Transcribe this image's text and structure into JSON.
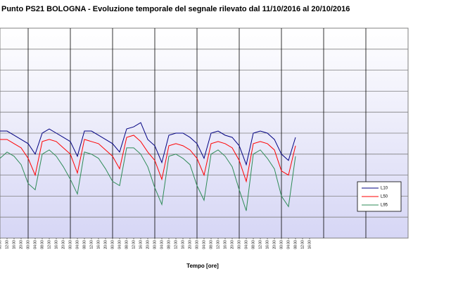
{
  "chart_data": {
    "type": "line",
    "title": "Punto PS21 BOLOGNA - Evoluzione temporale del segnale rilevato dal 11/10/2016 al 20/10/2016",
    "x_label": "Tempo [ore]",
    "x": [
      8,
      12,
      16,
      20,
      24,
      28,
      32,
      36,
      40,
      44,
      48,
      52,
      56,
      60,
      64,
      68,
      72,
      76,
      80,
      84,
      88,
      92,
      96,
      100,
      104,
      108,
      112,
      116,
      120,
      124,
      128,
      132,
      136,
      140,
      144,
      148,
      152,
      156,
      160,
      164,
      168,
      172,
      176
    ],
    "xlim": [
      8,
      240
    ],
    "xticks": [
      {
        "value": 8,
        "label": "08.00"
      },
      {
        "value": 12,
        "label": "12.00"
      },
      {
        "value": 16,
        "label": "16.00"
      },
      {
        "value": 20,
        "label": "20.00"
      },
      {
        "value": 24,
        "label": "00.00"
      },
      {
        "value": 28,
        "label": "04.00"
      },
      {
        "value": 32,
        "label": "08.00"
      },
      {
        "value": 36,
        "label": "12.00"
      },
      {
        "value": 40,
        "label": "16.00"
      },
      {
        "value": 44,
        "label": "20.00"
      },
      {
        "value": 48,
        "label": "00.00"
      },
      {
        "value": 52,
        "label": "04.00"
      },
      {
        "value": 56,
        "label": "08.00"
      },
      {
        "value": 60,
        "label": "12.00"
      },
      {
        "value": 64,
        "label": "16.00"
      },
      {
        "value": 68,
        "label": "20.00"
      },
      {
        "value": 72,
        "label": "00.00"
      },
      {
        "value": 76,
        "label": "04.00"
      },
      {
        "value": 80,
        "label": "08.00"
      },
      {
        "value": 84,
        "label": "12.00"
      },
      {
        "value": 88,
        "label": "16.00"
      },
      {
        "value": 92,
        "label": "20.00"
      },
      {
        "value": 96,
        "label": "00.00"
      },
      {
        "value": 100,
        "label": "04.00"
      },
      {
        "value": 104,
        "label": "08.00"
      },
      {
        "value": 108,
        "label": "12.00"
      },
      {
        "value": 112,
        "label": "16.00"
      },
      {
        "value": 116,
        "label": "20.00"
      },
      {
        "value": 120,
        "label": "00.00"
      },
      {
        "value": 124,
        "label": "04.00"
      },
      {
        "value": 128,
        "label": "08.00"
      },
      {
        "value": 132,
        "label": "12.00"
      },
      {
        "value": 136,
        "label": "16.00"
      },
      {
        "value": 140,
        "label": "20.00"
      },
      {
        "value": 144,
        "label": "00.00"
      },
      {
        "value": 148,
        "label": "04.00"
      },
      {
        "value": 152,
        "label": "08.00"
      },
      {
        "value": 156,
        "label": "12.00"
      },
      {
        "value": 160,
        "label": "16.00"
      },
      {
        "value": 164,
        "label": "20.00"
      },
      {
        "value": 168,
        "label": "00.00"
      },
      {
        "value": 172,
        "label": "04.00"
      },
      {
        "value": 176,
        "label": "08.00"
      },
      {
        "value": 180,
        "label": "12.00"
      },
      {
        "value": 184,
        "label": "16.00"
      }
    ],
    "day_lines": [
      24,
      48,
      72,
      96,
      120,
      144,
      168,
      192,
      216
    ],
    "ylim": [
      0,
      100
    ],
    "yticks": [
      0,
      10,
      20,
      30,
      40,
      50,
      60,
      70,
      80,
      90,
      100
    ],
    "grid": true,
    "legend": "lower right",
    "series": [
      {
        "name": "L10",
        "color": "#000080",
        "values": [
          51,
          51,
          49,
          47,
          45,
          40,
          50,
          52,
          50,
          48,
          46,
          39,
          51,
          51,
          49,
          47,
          45,
          41,
          52,
          53,
          55,
          47,
          44,
          36,
          49,
          50,
          50,
          48,
          45,
          38,
          50,
          51,
          49,
          48,
          44,
          35,
          50,
          51,
          50,
          47,
          40,
          37,
          48
        ]
      },
      {
        "name": "L50",
        "color": "#ff0000",
        "values": [
          47,
          47,
          45,
          43,
          38,
          30,
          46,
          47,
          46,
          43,
          40,
          31,
          47,
          46,
          45,
          42,
          39,
          33,
          48,
          49,
          46,
          41,
          37,
          28,
          44,
          45,
          44,
          42,
          38,
          30,
          45,
          46,
          45,
          43,
          37,
          27,
          45,
          46,
          45,
          42,
          32,
          30,
          44
        ]
      },
      {
        "name": "L95",
        "color": "#2e8b57",
        "values": [
          38,
          41,
          39,
          35,
          26,
          23,
          40,
          42,
          39,
          34,
          28,
          21,
          41,
          40,
          38,
          33,
          27,
          25,
          43,
          43,
          40,
          34,
          24,
          16,
          39,
          40,
          38,
          35,
          25,
          18,
          40,
          42,
          39,
          34,
          23,
          13,
          40,
          42,
          38,
          33,
          20,
          15,
          39
        ]
      }
    ]
  }
}
